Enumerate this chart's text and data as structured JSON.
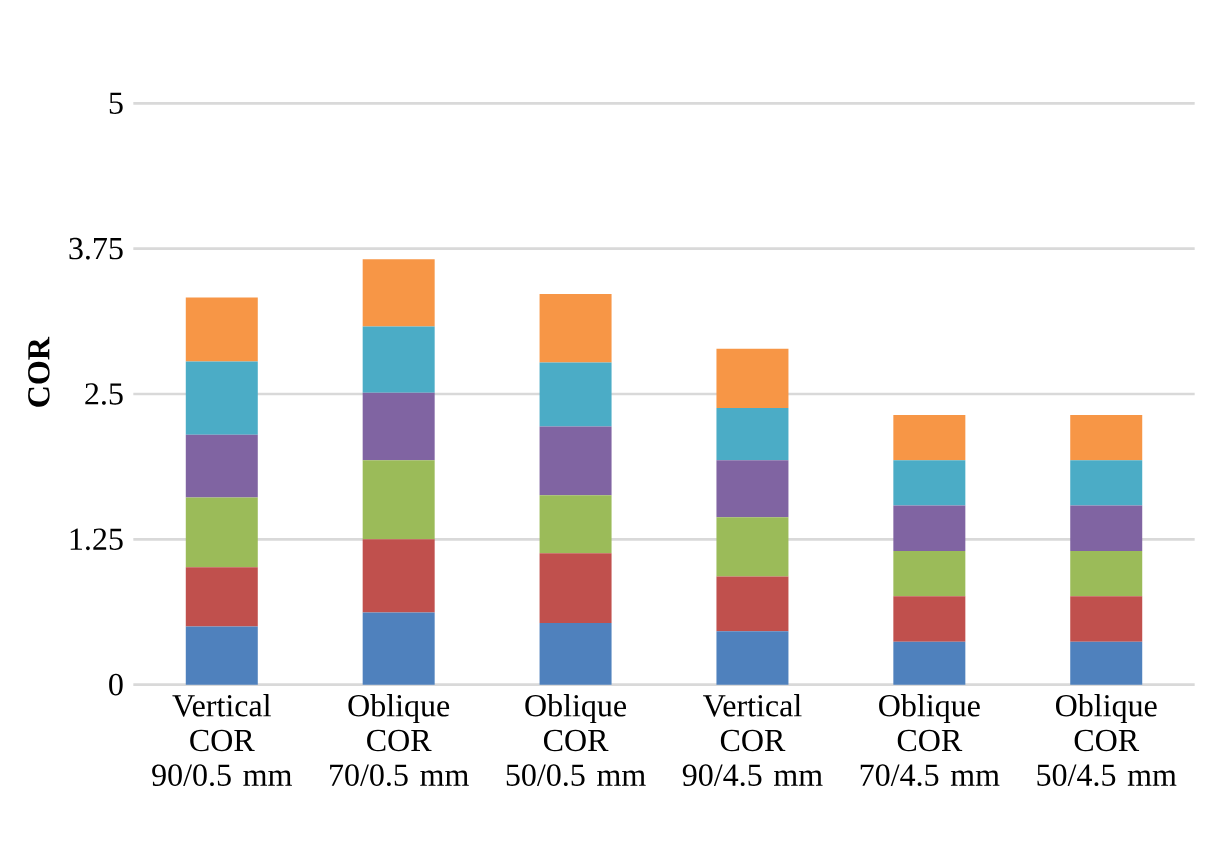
{
  "chart_data": {
    "type": "bar",
    "stacked": true,
    "ylabel": "COR",
    "categories": [
      "Vertical COR 90/0.5 mm",
      "Oblique COR 70/0.5 mm",
      "Oblique COR 50/0.5 mm",
      "Vertical COR 90/4.5 mm",
      "Oblique COR 70/4.5 mm",
      "Oblique COR 50/4.5 mm"
    ],
    "series": [
      {
        "color": "#4f81bd",
        "values": [
          0.5,
          0.62,
          0.53,
          0.46,
          0.37,
          0.37
        ]
      },
      {
        "color": "#c0504d",
        "values": [
          0.51,
          0.63,
          0.6,
          0.47,
          0.39,
          0.39
        ]
      },
      {
        "color": "#9bbb59",
        "values": [
          0.6,
          0.68,
          0.5,
          0.51,
          0.39,
          0.39
        ]
      },
      {
        "color": "#8064a2",
        "values": [
          0.54,
          0.58,
          0.59,
          0.49,
          0.39,
          0.39
        ]
      },
      {
        "color": "#4bacc6",
        "values": [
          0.63,
          0.57,
          0.55,
          0.45,
          0.39,
          0.39
        ]
      },
      {
        "color": "#f79646",
        "values": [
          0.55,
          0.58,
          0.59,
          0.51,
          0.39,
          0.39
        ]
      }
    ],
    "ylim": [
      0,
      5
    ],
    "yticks": [
      0,
      1.25,
      2.5,
      3.75,
      5
    ],
    "grid": "y"
  }
}
